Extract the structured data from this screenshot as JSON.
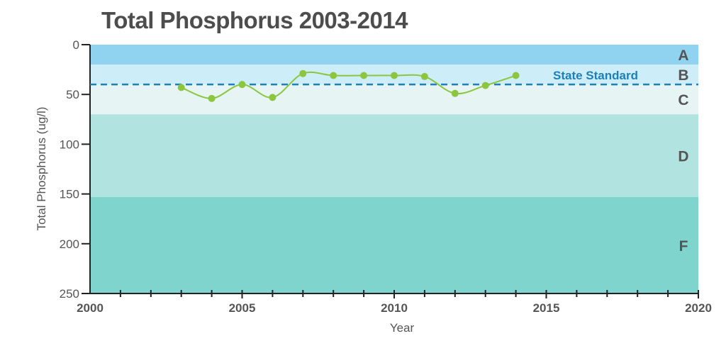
{
  "chart_data": {
    "type": "line",
    "title": "Total Phosphorus 2003-2014",
    "xlabel": "Year",
    "ylabel": "Total Phosphorus (ug/l)",
    "xlim": [
      2000,
      2020
    ],
    "ylim": [
      0,
      250
    ],
    "y_inverted": true,
    "x_ticks": [
      2000,
      2005,
      2010,
      2015,
      2020
    ],
    "y_ticks": [
      0,
      50,
      100,
      150,
      200,
      250
    ],
    "bands": [
      {
        "label": "A",
        "from": 0,
        "to": 20,
        "color": "#8fd3f0"
      },
      {
        "label": "B",
        "from": 20,
        "to": 40,
        "color": "#cdeef8"
      },
      {
        "label": "C",
        "from": 40,
        "to": 70,
        "color": "#e6f4f4"
      },
      {
        "label": "D",
        "from": 70,
        "to": 153,
        "color": "#b1e3e0"
      },
      {
        "label": "F",
        "from": 153,
        "to": 250,
        "color": "#7fd4cd"
      }
    ],
    "reference_line": {
      "label": "State Standard",
      "value": 40,
      "color": "#1f7fb8"
    },
    "series": [
      {
        "color": "#8cc63f",
        "x": [
          2003,
          2004,
          2005,
          2006,
          2007,
          2008,
          2009,
          2010,
          2011,
          2012,
          2013,
          2014
        ],
        "values": [
          43,
          54,
          40,
          53,
          29,
          31,
          31,
          31,
          32,
          49,
          41,
          31
        ]
      }
    ]
  }
}
